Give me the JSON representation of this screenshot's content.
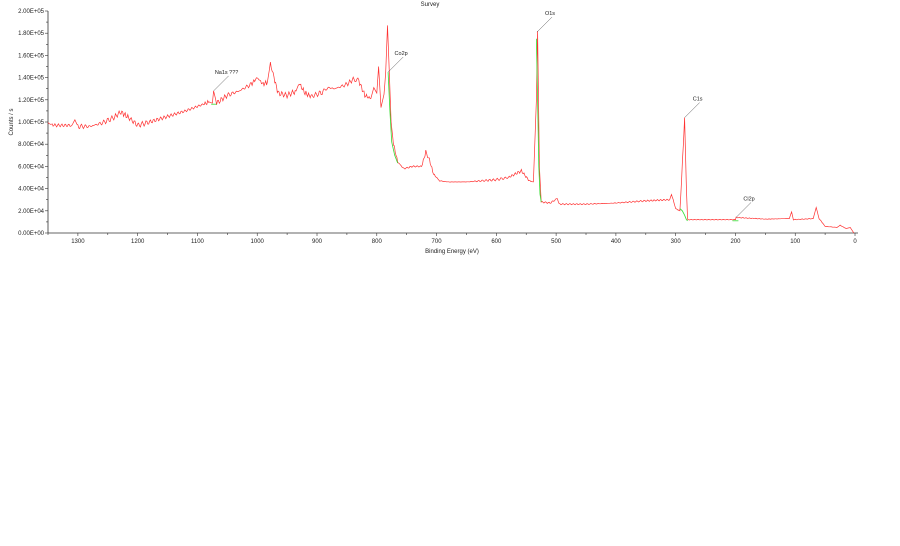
{
  "chart_data": {
    "type": "line",
    "title": "Survey",
    "xlabel": "Binding Energy (eV)",
    "ylabel": "Counts / s",
    "xlim": [
      1350,
      -5
    ],
    "ylim": [
      0,
      200000
    ],
    "x_reversed": true,
    "grid": false,
    "x_ticks": [
      1300,
      1200,
      1100,
      1000,
      900,
      800,
      700,
      600,
      500,
      400,
      300,
      200,
      100,
      0
    ],
    "y_ticks": [
      "0.00E+00",
      "2.00E+04",
      "4.00E+04",
      "6.00E+04",
      "8.00E+04",
      "1.00E+05",
      "1.20E+05",
      "1.40E+05",
      "1.60E+05",
      "1.80E+05",
      "2.00E+05"
    ],
    "series": [
      {
        "color": "#ff3030",
        "x": [
          1350,
          1340,
          1310,
          1305,
          1300,
          1280,
          1260,
          1240,
          1228,
          1215,
          1200,
          1180,
          1150,
          1120,
          1090,
          1080,
          1075,
          1073,
          1068,
          1050,
          1030,
          1010,
          1000,
          990,
          983,
          978,
          972,
          965,
          950,
          935,
          930,
          920,
          910,
          890,
          882,
          870,
          850,
          838,
          830,
          820,
          810,
          805,
          800,
          797,
          793,
          788,
          785,
          782,
          779,
          776,
          772,
          765,
          755,
          740,
          725,
          718,
          712,
          705,
          695,
          680,
          650,
          600,
          580,
          558,
          545,
          538,
          533,
          531,
          528,
          525,
          510,
          498,
          495,
          450,
          400,
          350,
          310,
          307,
          300,
          293,
          287,
          285,
          282,
          280,
          250,
          200,
          199,
          150,
          110,
          106,
          103,
          70,
          65,
          60,
          50,
          30,
          25,
          15,
          8,
          2
        ],
        "y": [
          99000,
          97000,
          97000,
          102000,
          96000,
          96000,
          99000,
          104000,
          109000,
          104000,
          97000,
          100000,
          105000,
          110000,
          116000,
          118000,
          117000,
          128000,
          117000,
          124000,
          128000,
          134000,
          140000,
          134000,
          136000,
          153000,
          140000,
          126000,
          124000,
          128000,
          135000,
          126000,
          123000,
          127000,
          131000,
          130000,
          134000,
          139000,
          137000,
          124000,
          121000,
          131000,
          126000,
          150000,
          113000,
          125000,
          145000,
          187000,
          145000,
          100000,
          80000,
          64000,
          58000,
          60000,
          60000,
          73000,
          66000,
          53000,
          47000,
          46000,
          46000,
          48000,
          50000,
          56000,
          47000,
          46000,
          120000,
          182000,
          60000,
          28000,
          27000,
          31000,
          26000,
          26000,
          27000,
          29000,
          30000,
          35000,
          22000,
          20000,
          80000,
          104000,
          40000,
          12000,
          12000,
          12000,
          14000,
          12500,
          13000,
          19000,
          12000,
          13000,
          23000,
          13000,
          6000,
          5000,
          7000,
          4000,
          5000,
          0
        ]
      },
      {
        "color": "#33dd33",
        "segments": [
          {
            "x": [
              1077,
              1068
            ],
            "y": [
              116000,
              116000
            ]
          },
          {
            "x": [
              781,
              778,
              775,
              770,
              765
            ],
            "y": [
              145000,
              110000,
              82000,
              70000,
              63000
            ]
          },
          {
            "x": [
              533,
              531,
              529,
              527,
              525
            ],
            "y": [
              175000,
              120000,
              60000,
              35000,
              28000
            ]
          },
          {
            "x": [
              293,
              289,
              285,
              282,
              280
            ],
            "y": [
              22000,
              20000,
              16000,
              12000,
              11000
            ]
          },
          {
            "x": [
              205,
              195
            ],
            "y": [
              11000,
              11000
            ]
          }
        ]
      }
    ],
    "annotations": [
      {
        "text": "Na1s ???",
        "x": 1073,
        "y": 128000
      },
      {
        "text": "Co2p",
        "x": 781,
        "y": 145000
      },
      {
        "text": "O1s",
        "x": 532,
        "y": 181000
      },
      {
        "text": "C1s",
        "x": 285,
        "y": 104000
      },
      {
        "text": "Cl2p",
        "x": 199,
        "y": 14000
      }
    ]
  }
}
